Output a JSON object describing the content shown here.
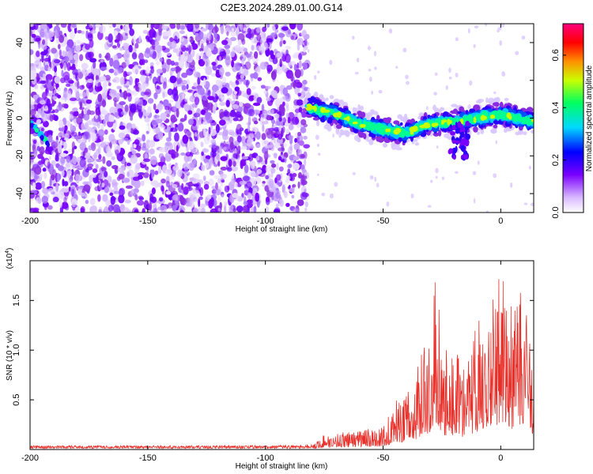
{
  "title": "C2E3.2024.289.01.00.G14",
  "chart_data": [
    {
      "type": "heatmap",
      "xlabel": "Height of straight line (km)",
      "ylabel": "Frequency (Hz)",
      "xlim": [
        -200,
        14
      ],
      "ylim": [
        -50,
        50
      ],
      "xticks": [
        -200,
        -150,
        -100,
        -50,
        0
      ],
      "yticks": [
        -40,
        -20,
        0,
        20,
        40
      ],
      "colorbar": {
        "label": "Normalized spectral amplitude",
        "range": [
          0.0,
          0.72
        ],
        "ticks": [
          "0.0",
          "0.2",
          "0.4",
          "0.6"
        ],
        "colors": [
          "#ffffff",
          "#c000ff",
          "#0000ff",
          "#00ffff",
          "#00ff00",
          "#ffff00",
          "#ff0000",
          "#ff0080"
        ]
      },
      "features": {
        "noise_region_x": [
          -200,
          -82
        ],
        "signal_region_x": [
          -82,
          14
        ],
        "signal_track": [
          [
            -82,
            6
          ],
          [
            -70,
            2
          ],
          [
            -60,
            -3
          ],
          [
            -50,
            -6
          ],
          [
            -40,
            -8
          ],
          [
            -30,
            -3
          ],
          [
            -20,
            -2
          ],
          [
            -10,
            0
          ],
          [
            0,
            2
          ],
          [
            14,
            -2
          ]
        ],
        "low_track": [
          [
            -200,
            -2
          ],
          [
            -192,
            -14
          ]
        ]
      }
    },
    {
      "type": "line",
      "xlabel": "Height of straight line (km)",
      "ylabel": "SNR (10 * v/v)",
      "exponent_label": "(x10",
      "exponent_sup": "4",
      "exponent_close": ")",
      "xlim": [
        -200,
        14
      ],
      "ylim": [
        0,
        1.9
      ],
      "xticks": [
        -200,
        -150,
        -100,
        -50,
        0
      ],
      "yticks": [
        "0.5",
        "1.0",
        "1.5"
      ],
      "yticks_values": [
        0.5,
        1.0,
        1.5
      ],
      "line_color": "#e8302a",
      "envelope": [
        [
          -200,
          0.03
        ],
        [
          -150,
          0.03
        ],
        [
          -100,
          0.03
        ],
        [
          -80,
          0.04
        ],
        [
          -75,
          0.14
        ],
        [
          -60,
          0.18
        ],
        [
          -50,
          0.2
        ],
        [
          -45,
          0.45
        ],
        [
          -38,
          0.55
        ],
        [
          -30,
          1.15
        ],
        [
          -28,
          1.9
        ],
        [
          -25,
          0.9
        ],
        [
          -18,
          0.95
        ],
        [
          -15,
          0.75
        ],
        [
          -10,
          1.2
        ],
        [
          -5,
          1.4
        ],
        [
          0,
          1.75
        ],
        [
          5,
          1.3
        ],
        [
          10,
          1.5
        ],
        [
          14,
          1.0
        ]
      ]
    }
  ]
}
